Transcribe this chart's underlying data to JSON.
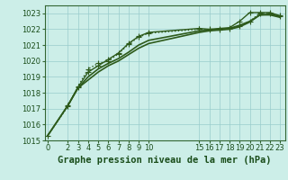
{
  "background_color": "#cceee8",
  "grid_color": "#99cccc",
  "line_color": "#2d5a1b",
  "title": "Graphe pression niveau de la mer (hPa)",
  "ylim": [
    1015.0,
    1023.5
  ],
  "yticks": [
    1015,
    1016,
    1017,
    1018,
    1019,
    1020,
    1021,
    1022,
    1023
  ],
  "xticks": [
    0,
    2,
    3,
    4,
    5,
    6,
    7,
    8,
    9,
    10,
    15,
    16,
    17,
    18,
    19,
    20,
    21,
    22,
    23
  ],
  "xlim": [
    -0.3,
    23.5
  ],
  "series": [
    {
      "x": [
        0,
        2,
        3,
        4,
        5,
        6,
        7,
        8,
        9,
        10,
        15,
        16,
        17,
        18,
        19,
        20,
        21,
        22,
        23
      ],
      "y": [
        1015.3,
        1017.15,
        1018.4,
        1019.5,
        1019.85,
        1020.0,
        1020.45,
        1021.05,
        1021.5,
        1021.75,
        1022.0,
        1021.95,
        1021.95,
        1022.05,
        1022.2,
        1022.5,
        1023.0,
        1023.0,
        1022.8
      ],
      "marker": "+",
      "linestyle": ":",
      "linewidth": 1.0,
      "markersize": 4
    },
    {
      "x": [
        2,
        3,
        4,
        5,
        6,
        7,
        8,
        9,
        10,
        15,
        16,
        17,
        18,
        19,
        20,
        21,
        22,
        23
      ],
      "y": [
        1017.2,
        1018.35,
        1019.3,
        1019.7,
        1020.1,
        1020.5,
        1021.1,
        1021.55,
        1021.8,
        1022.05,
        1022.0,
        1022.05,
        1022.1,
        1022.5,
        1023.05,
        1023.05,
        1023.05,
        1022.85
      ],
      "marker": "+",
      "linestyle": "-",
      "linewidth": 1.0,
      "markersize": 4
    },
    {
      "x": [
        0,
        2,
        3,
        4,
        5,
        6,
        7,
        8,
        9,
        10,
        15,
        16,
        17,
        18,
        19,
        20,
        21,
        22,
        23
      ],
      "y": [
        1015.3,
        1017.2,
        1018.3,
        1018.8,
        1019.3,
        1019.7,
        1020.0,
        1020.4,
        1020.8,
        1021.1,
        1021.8,
        1021.9,
        1021.95,
        1022.0,
        1022.15,
        1022.45,
        1022.9,
        1022.9,
        1022.75
      ],
      "marker": null,
      "linestyle": "-",
      "linewidth": 1.2,
      "markersize": 0
    },
    {
      "x": [
        0,
        2,
        3,
        4,
        5,
        6,
        7,
        8,
        9,
        10,
        15,
        16,
        17,
        18,
        19,
        20,
        21,
        22,
        23
      ],
      "y": [
        1015.3,
        1017.2,
        1018.3,
        1019.0,
        1019.5,
        1019.85,
        1020.15,
        1020.55,
        1021.0,
        1021.3,
        1021.9,
        1021.95,
        1022.0,
        1022.05,
        1022.25,
        1022.5,
        1022.9,
        1022.95,
        1022.8
      ],
      "marker": null,
      "linestyle": "-",
      "linewidth": 1.2,
      "markersize": 0
    }
  ],
  "title_fontsize": 7.5,
  "tick_fontsize": 6.0,
  "title_color": "#1a4d1a",
  "tick_color": "#1a4d1a",
  "spine_color": "#336633"
}
